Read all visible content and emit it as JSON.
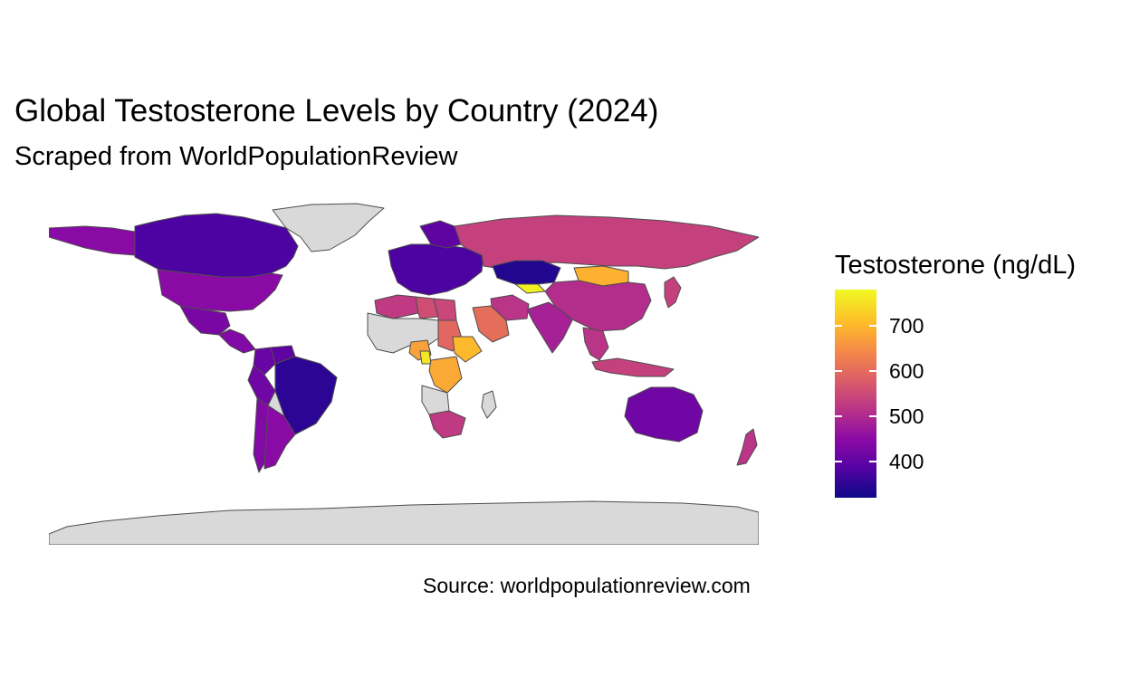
{
  "title": "Global Testosterone Levels by Country (2024)",
  "subtitle": "Scraped from WorldPopulationReview",
  "caption": "Source: worldpopulationreview.com",
  "colors": {
    "no_data": "#d9d9d9",
    "border": "#4d4d4d",
    "scale": [
      "#0d0887",
      "#5302a3",
      "#8b0aa5",
      "#b83289",
      "#db5c68",
      "#f48849",
      "#febc2a",
      "#f0f921"
    ]
  },
  "legend": {
    "title": "Testosterone (ng/dL)",
    "min": 320,
    "max": 780,
    "ticks": [
      {
        "value": 400,
        "label": "400"
      },
      {
        "value": 500,
        "label": "500"
      },
      {
        "value": 600,
        "label": "600"
      },
      {
        "value": 700,
        "label": "700"
      }
    ]
  },
  "regions": [
    {
      "name": "Greenland",
      "value": null
    },
    {
      "name": "Canada",
      "value": 380
    },
    {
      "name": "United States",
      "value": 450
    },
    {
      "name": "Mexico",
      "value": 430
    },
    {
      "name": "Central America",
      "value": 440
    },
    {
      "name": "Colombia",
      "value": 410
    },
    {
      "name": "Venezuela",
      "value": 400
    },
    {
      "name": "Brazil",
      "value": 350
    },
    {
      "name": "Peru",
      "value": 420
    },
    {
      "name": "Bolivia",
      "value": null
    },
    {
      "name": "Argentina",
      "value": 450
    },
    {
      "name": "Chile",
      "value": 440
    },
    {
      "name": "Europe",
      "value": 380
    },
    {
      "name": "Scandinavia",
      "value": 400
    },
    {
      "name": "Russia",
      "value": 540
    },
    {
      "name": "Kazakhstan",
      "value": 340
    },
    {
      "name": "Uzbekistan",
      "value": 770
    },
    {
      "name": "Mongolia",
      "value": 700
    },
    {
      "name": "China",
      "value": 510
    },
    {
      "name": "India",
      "value": 490
    },
    {
      "name": "Iran",
      "value": 520
    },
    {
      "name": "Saudi Arabia",
      "value": 610
    },
    {
      "name": "Egypt",
      "value": 550
    },
    {
      "name": "Libya",
      "value": 560
    },
    {
      "name": "North Africa",
      "value": 530
    },
    {
      "name": "West Africa",
      "value": null
    },
    {
      "name": "Nigeria",
      "value": 680
    },
    {
      "name": "Ghana",
      "value": 760
    },
    {
      "name": "Sudan",
      "value": 600
    },
    {
      "name": "Ethiopia",
      "value": 710
    },
    {
      "name": "DR Congo",
      "value": 690
    },
    {
      "name": "Angola",
      "value": null
    },
    {
      "name": "South Africa",
      "value": 530
    },
    {
      "name": "Madagascar",
      "value": null
    },
    {
      "name": "Southeast Asia",
      "value": 520
    },
    {
      "name": "Indonesia",
      "value": 540
    },
    {
      "name": "Japan",
      "value": 540
    },
    {
      "name": "Australia",
      "value": 420
    },
    {
      "name": "New Zealand",
      "value": 520
    },
    {
      "name": "Antarctica",
      "value": null
    }
  ]
}
